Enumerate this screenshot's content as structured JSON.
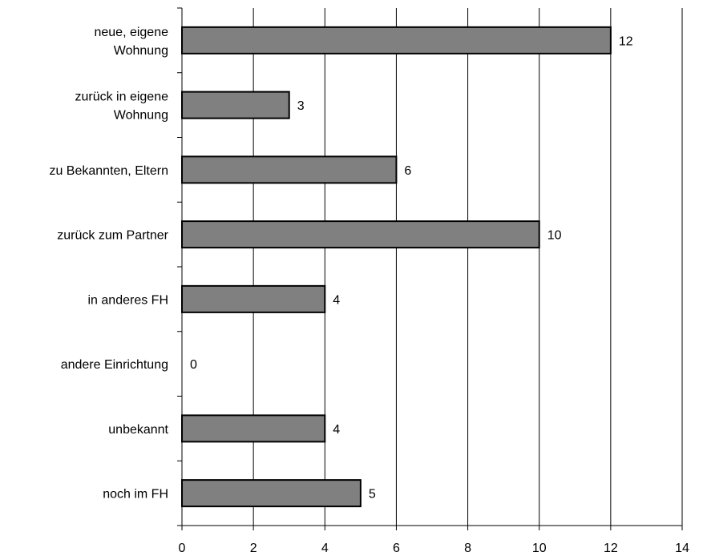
{
  "chart_data": {
    "type": "bar",
    "orientation": "horizontal",
    "categories": [
      [
        "neue, eigene",
        "Wohnung"
      ],
      [
        "zurück in eigene",
        "Wohnung"
      ],
      [
        "zu Bekannten, Eltern"
      ],
      [
        "zurück zum Partner"
      ],
      [
        "in anderes FH"
      ],
      [
        "andere Einrichtung"
      ],
      [
        "unbekannt"
      ],
      [
        "noch im FH"
      ]
    ],
    "values": [
      12,
      3,
      6,
      10,
      4,
      0,
      4,
      5
    ],
    "data_labels": [
      "12",
      "3",
      "6",
      "10",
      "4",
      "0",
      "4",
      "5"
    ],
    "title": "",
    "xlabel": "",
    "ylabel": "",
    "xlim": [
      0,
      14
    ],
    "x_ticks": [
      0,
      2,
      4,
      6,
      8,
      10,
      12,
      14
    ],
    "x_tick_labels": [
      "0",
      "2",
      "4",
      "6",
      "8",
      "10",
      "12",
      "14"
    ],
    "grid": "vertical",
    "legend": "none",
    "colors": {
      "bar_fill": "#808080",
      "bar_stroke": "#000000",
      "grid": "#000000",
      "background": "#ffffff"
    }
  }
}
